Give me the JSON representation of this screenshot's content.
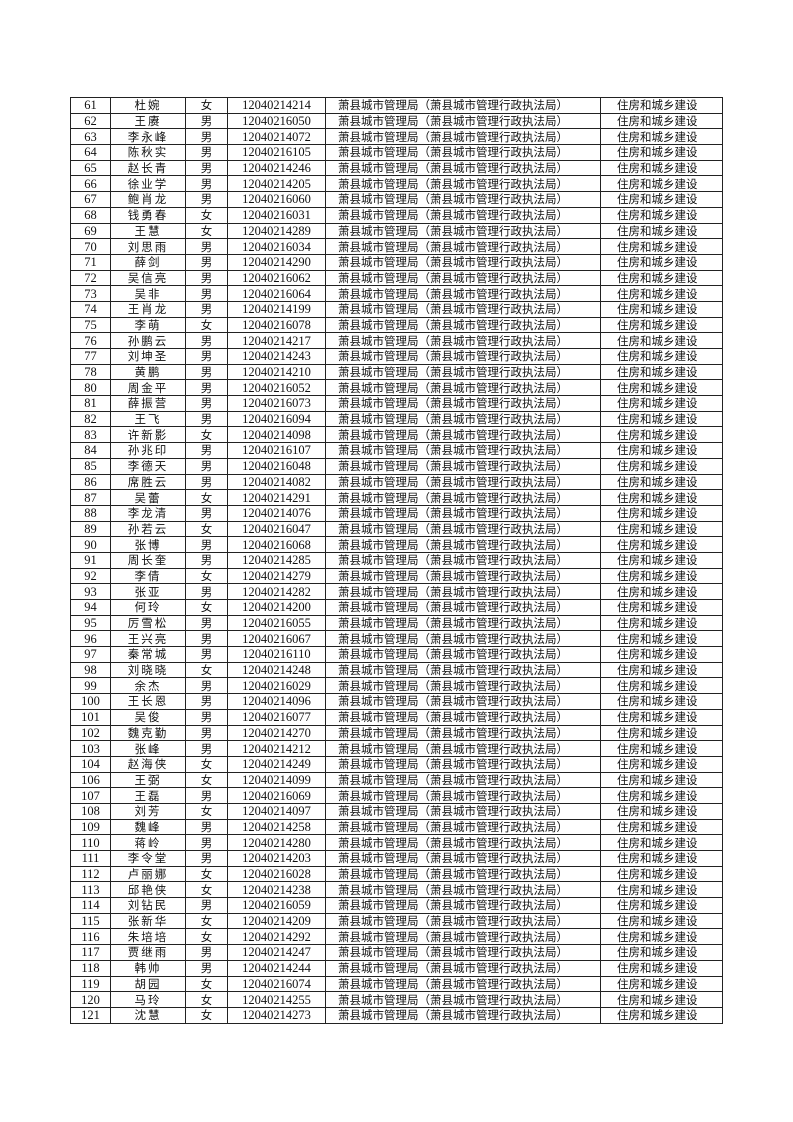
{
  "table": {
    "unit": "萧县城市管理局（萧县城市管理行政执法局）",
    "category": "住房和城乡建设",
    "rows": [
      {
        "no": "61",
        "name": "杜婉",
        "gender": "女",
        "id": "12040214214"
      },
      {
        "no": "62",
        "name": "王赓",
        "gender": "男",
        "id": "12040216050"
      },
      {
        "no": "63",
        "name": "李永峰",
        "gender": "男",
        "id": "12040214072"
      },
      {
        "no": "64",
        "name": "陈秋实",
        "gender": "男",
        "id": "12040216105"
      },
      {
        "no": "65",
        "name": "赵长青",
        "gender": "男",
        "id": "12040214246"
      },
      {
        "no": "66",
        "name": "徐业学",
        "gender": "男",
        "id": "12040214205"
      },
      {
        "no": "67",
        "name": "鲍肖龙",
        "gender": "男",
        "id": "12040216060"
      },
      {
        "no": "68",
        "name": "钱勇春",
        "gender": "女",
        "id": "12040216031"
      },
      {
        "no": "69",
        "name": "王慧",
        "gender": "女",
        "id": "12040214289"
      },
      {
        "no": "70",
        "name": "刘思雨",
        "gender": "男",
        "id": "12040216034"
      },
      {
        "no": "71",
        "name": "薛剑",
        "gender": "男",
        "id": "12040214290"
      },
      {
        "no": "72",
        "name": "吴信亮",
        "gender": "男",
        "id": "12040216062"
      },
      {
        "no": "73",
        "name": "吴非",
        "gender": "男",
        "id": "12040216064"
      },
      {
        "no": "74",
        "name": "王肖龙",
        "gender": "男",
        "id": "12040214199"
      },
      {
        "no": "75",
        "name": "李萌",
        "gender": "女",
        "id": "12040216078"
      },
      {
        "no": "76",
        "name": "孙鹏云",
        "gender": "男",
        "id": "12040214217"
      },
      {
        "no": "77",
        "name": "刘坤圣",
        "gender": "男",
        "id": "12040214243"
      },
      {
        "no": "78",
        "name": "黄鹏",
        "gender": "男",
        "id": "12040214210"
      },
      {
        "no": "80",
        "name": "周金平",
        "gender": "男",
        "id": "12040216052"
      },
      {
        "no": "81",
        "name": "薛振营",
        "gender": "男",
        "id": "12040216073"
      },
      {
        "no": "82",
        "name": "王飞",
        "gender": "男",
        "id": "12040216094"
      },
      {
        "no": "83",
        "name": "许新影",
        "gender": "女",
        "id": "12040214098"
      },
      {
        "no": "84",
        "name": "孙兆印",
        "gender": "男",
        "id": "12040216107"
      },
      {
        "no": "85",
        "name": "李德天",
        "gender": "男",
        "id": "12040216048"
      },
      {
        "no": "86",
        "name": "席胜云",
        "gender": "男",
        "id": "12040214082"
      },
      {
        "no": "87",
        "name": "吴蕾",
        "gender": "女",
        "id": "12040214291"
      },
      {
        "no": "88",
        "name": "李龙清",
        "gender": "男",
        "id": "12040214076"
      },
      {
        "no": "89",
        "name": "孙若云",
        "gender": "女",
        "id": "12040216047"
      },
      {
        "no": "90",
        "name": "张博",
        "gender": "男",
        "id": "12040216068"
      },
      {
        "no": "91",
        "name": "周长奎",
        "gender": "男",
        "id": "12040214285"
      },
      {
        "no": "92",
        "name": "李倩",
        "gender": "女",
        "id": "12040214279"
      },
      {
        "no": "93",
        "name": "张亚",
        "gender": "男",
        "id": "12040214282"
      },
      {
        "no": "94",
        "name": "何玲",
        "gender": "女",
        "id": "12040214200"
      },
      {
        "no": "95",
        "name": "厉雪松",
        "gender": "男",
        "id": "12040216055"
      },
      {
        "no": "96",
        "name": "王兴亮",
        "gender": "男",
        "id": "12040216067"
      },
      {
        "no": "97",
        "name": "秦常城",
        "gender": "男",
        "id": "12040216110"
      },
      {
        "no": "98",
        "name": "刘晓晓",
        "gender": "女",
        "id": "12040214248"
      },
      {
        "no": "99",
        "name": "余杰",
        "gender": "男",
        "id": "12040216029"
      },
      {
        "no": "100",
        "name": "王长恩",
        "gender": "男",
        "id": "12040214096"
      },
      {
        "no": "101",
        "name": "吴俊",
        "gender": "男",
        "id": "12040216077"
      },
      {
        "no": "102",
        "name": "魏克勤",
        "gender": "男",
        "id": "12040214270"
      },
      {
        "no": "103",
        "name": "张峰",
        "gender": "男",
        "id": "12040214212"
      },
      {
        "no": "104",
        "name": "赵海侠",
        "gender": "女",
        "id": "12040214249"
      },
      {
        "no": "106",
        "name": "王弼",
        "gender": "女",
        "id": "12040214099"
      },
      {
        "no": "107",
        "name": "王磊",
        "gender": "男",
        "id": "12040216069"
      },
      {
        "no": "108",
        "name": "刘芳",
        "gender": "女",
        "id": "12040214097"
      },
      {
        "no": "109",
        "name": "魏峰",
        "gender": "男",
        "id": "12040214258"
      },
      {
        "no": "110",
        "name": "蒋岭",
        "gender": "男",
        "id": "12040214280"
      },
      {
        "no": "111",
        "name": "李令堂",
        "gender": "男",
        "id": "12040214203"
      },
      {
        "no": "112",
        "name": "卢丽娜",
        "gender": "女",
        "id": "12040216028"
      },
      {
        "no": "113",
        "name": "邱艳侠",
        "gender": "女",
        "id": "12040214238"
      },
      {
        "no": "114",
        "name": "刘钻民",
        "gender": "男",
        "id": "12040216059"
      },
      {
        "no": "115",
        "name": "张新华",
        "gender": "女",
        "id": "12040214209"
      },
      {
        "no": "116",
        "name": "朱培培",
        "gender": "女",
        "id": "12040214292"
      },
      {
        "no": "117",
        "name": "贾继雨",
        "gender": "男",
        "id": "12040214247"
      },
      {
        "no": "118",
        "name": "韩帅",
        "gender": "男",
        "id": "12040214244"
      },
      {
        "no": "119",
        "name": "胡园",
        "gender": "女",
        "id": "12040216074"
      },
      {
        "no": "120",
        "name": "马玲",
        "gender": "女",
        "id": "12040214255"
      },
      {
        "no": "121",
        "name": "沈慧",
        "gender": "女",
        "id": "12040214273"
      }
    ]
  }
}
